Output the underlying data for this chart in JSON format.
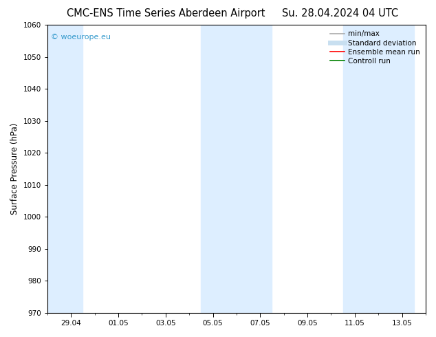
{
  "title_left": "CMC-ENS Time Series Aberdeen Airport",
  "title_right": "Su. 28.04.2024 04 UTC",
  "ylabel": "Surface Pressure (hPa)",
  "ylim": [
    970,
    1060
  ],
  "yticks": [
    970,
    980,
    990,
    1000,
    1010,
    1020,
    1030,
    1040,
    1050,
    1060
  ],
  "x_min": 0,
  "x_max": 16,
  "xtick_labels": [
    "29.04",
    "01.05",
    "03.05",
    "05.05",
    "07.05",
    "09.05",
    "11.05",
    "13.05"
  ],
  "xtick_positions": [
    1,
    3,
    5,
    7,
    9,
    11,
    13,
    15
  ],
  "shaded_bands": [
    {
      "x_start": 0.0,
      "x_end": 1.5,
      "color": "#ddeeff"
    },
    {
      "x_start": 6.5,
      "x_end": 9.5,
      "color": "#ddeeff"
    },
    {
      "x_start": 12.5,
      "x_end": 15.5,
      "color": "#ddeeff"
    }
  ],
  "watermark": "© woeurope.eu",
  "watermark_color": "#3399cc",
  "legend_entries": [
    {
      "label": "min/max",
      "color": "#aaaaaa",
      "lw": 1.2
    },
    {
      "label": "Standard deviation",
      "color": "#c8dff0",
      "lw": 5
    },
    {
      "label": "Ensemble mean run",
      "color": "#ff0000",
      "lw": 1.2
    },
    {
      "label": "Controll run",
      "color": "#008000",
      "lw": 1.2
    }
  ],
  "bg_color": "#ffffff",
  "plot_bg_color": "#ffffff",
  "title_fontsize": 10.5,
  "label_fontsize": 8.5,
  "tick_fontsize": 7.5,
  "legend_fontsize": 7.5
}
